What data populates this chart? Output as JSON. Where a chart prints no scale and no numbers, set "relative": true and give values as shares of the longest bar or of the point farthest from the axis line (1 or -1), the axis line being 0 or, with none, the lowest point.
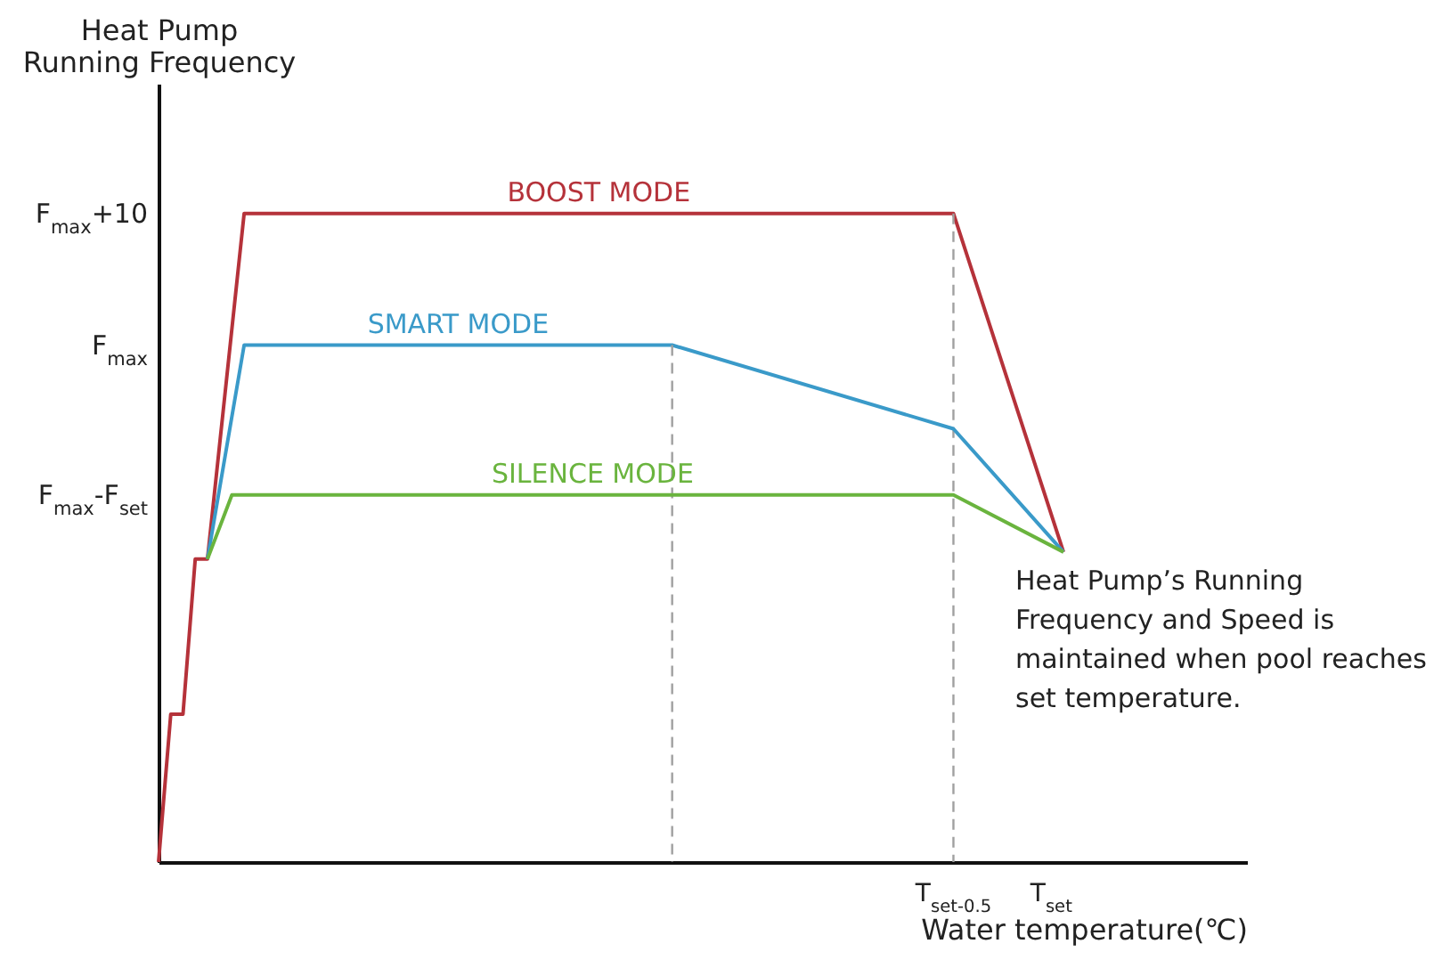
{
  "chart_data": {
    "type": "line",
    "relative": true,
    "xlabel": "Water temperature(℃)",
    "ylabel": "Heat Pump\nRunning Frequency",
    "legend": false,
    "categories": [
      null,
      null,
      null,
      null,
      null,
      null,
      null,
      null,
      null,
      null,
      null,
      null,
      null,
      null,
      null,
      null,
      null,
      null,
      null,
      null,
      null,
      null,
      null,
      null,
      null,
      null,
      null,
      null,
      null,
      null,
      null,
      null,
      null,
      null,
      null,
      null,
      null,
      null,
      null,
      null,
      null,
      null,
      null,
      null,
      null,
      null,
      null,
      null,
      null,
      null,
      null,
      null,
      null,
      null,
      null,
      null,
      null,
      null,
      null,
      null,
      null,
      null,
      null,
      null,
      null,
      "T$_{set-0.5}$",
      null,
      null,
      null,
      null,
      null,
      null,
      null,
      "T$_{set}$",
      null,
      null,
      null,
      null,
      null,
      null,
      null,
      null,
      null,
      null,
      null,
      null,
      null,
      null,
      null,
      null
    ],
    "series": [
      {
        "name": "BOOST MODE",
        "color": "#b5323a",
        "values": [
          0,
          0.228,
          0.228,
          0.467,
          0.467,
          null,
          null,
          1,
          null,
          null,
          null,
          null,
          null,
          null,
          null,
          null,
          null,
          null,
          null,
          null,
          null,
          null,
          null,
          null,
          null,
          null,
          null,
          null,
          null,
          null,
          null,
          null,
          null,
          null,
          null,
          null,
          null,
          null,
          null,
          null,
          null,
          null,
          null,
          null,
          null,
          null,
          null,
          null,
          null,
          null,
          null,
          null,
          null,
          null,
          null,
          null,
          null,
          null,
          null,
          null,
          null,
          null,
          null,
          null,
          null,
          1,
          null,
          null,
          null,
          null,
          null,
          null,
          null,
          null,
          0.478,
          null,
          null,
          null,
          null,
          null,
          null,
          null,
          null,
          null,
          null,
          null,
          null,
          null,
          null,
          null
        ]
      },
      {
        "name": "SMART MODE",
        "color": "#3a9ac9",
        "values": [
          null,
          null,
          null,
          null,
          0.467,
          null,
          null,
          0.797,
          null,
          null,
          null,
          null,
          null,
          null,
          null,
          null,
          null,
          null,
          null,
          null,
          null,
          null,
          null,
          null,
          null,
          null,
          null,
          null,
          null,
          null,
          null,
          null,
          null,
          null,
          null,
          null,
          null,
          null,
          null,
          null,
          null,
          null,
          0.797,
          null,
          null,
          null,
          null,
          null,
          null,
          null,
          null,
          null,
          null,
          null,
          null,
          null,
          null,
          null,
          null,
          null,
          null,
          null,
          null,
          null,
          null,
          0.668,
          null,
          null,
          null,
          null,
          null,
          null,
          null,
          null,
          0.478,
          null,
          null,
          null,
          null,
          null,
          null,
          null,
          null,
          null,
          null,
          null,
          null,
          null,
          null,
          null
        ]
      },
      {
        "name": "SILENCE MODE",
        "color": "#6ab43e",
        "values": [
          null,
          null,
          null,
          null,
          0.467,
          null,
          0.566,
          null,
          null,
          null,
          null,
          null,
          null,
          null,
          null,
          null,
          null,
          null,
          null,
          null,
          null,
          null,
          null,
          null,
          null,
          null,
          null,
          null,
          null,
          null,
          null,
          null,
          null,
          null,
          null,
          null,
          null,
          null,
          null,
          null,
          null,
          null,
          null,
          null,
          null,
          null,
          null,
          null,
          null,
          null,
          null,
          null,
          null,
          null,
          null,
          null,
          null,
          null,
          null,
          null,
          null,
          null,
          null,
          null,
          null,
          0.566,
          null,
          null,
          null,
          null,
          null,
          null,
          null,
          null,
          0.478,
          null,
          null,
          null,
          null,
          null,
          null,
          null,
          null,
          null,
          null,
          null,
          null,
          null,
          null,
          null
        ]
      }
    ],
    "annotations": [
      "F$_{max}$+10",
      "F$_{max}$",
      "F$_{max}$-F$_{set}$",
      "Heat Pump’s Running Frequency and Speed is maintained when pool reaches set temperature."
    ]
  }
}
